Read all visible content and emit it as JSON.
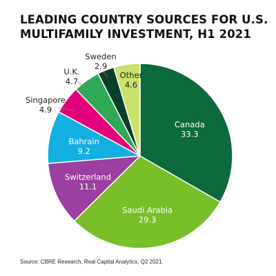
{
  "title_lines": [
    "LEADING COUNTRY SOURCES FOR U.S.",
    "MULTIFAMILY INVESTMENT, H1 2021"
  ],
  "source": "Source: CBRE Research, Real Capital Analytics, Q2 2021.",
  "chart_data": {
    "type": "pie",
    "title": "LEADING COUNTRY SOURCES FOR U.S. MULTIFAMILY INVESTMENT, H1 2021",
    "start": "12 o'clock",
    "direction": "clockwise",
    "slices": [
      {
        "label": "Canada",
        "value": 33.3,
        "value_label": "33.3",
        "color": "#0d6a3c",
        "text_color": "#ffffff"
      },
      {
        "label": "Saudi Arabia",
        "value": 29.3,
        "value_label": "29.3",
        "color": "#78bf2a",
        "text_color": "#ffffff"
      },
      {
        "label": "Switzerland",
        "value": 11.1,
        "value_label": "11.1",
        "color": "#9b3fa0",
        "text_color": "#ffffff"
      },
      {
        "label": "Bahrain",
        "value": 9.2,
        "value_label": "9.2",
        "color": "#12afe3",
        "text_color": "#ffffff"
      },
      {
        "label": "Singapore",
        "value": 4.9,
        "value_label": "4.9",
        "color": "#e3007a",
        "text_color": "#222222"
      },
      {
        "label": "U.K.",
        "value": 4.7,
        "value_label": "4.7",
        "color": "#2eaa57",
        "text_color": "#222222"
      },
      {
        "label": "Sweden",
        "value": 2.9,
        "value_label": "2.9",
        "color": "#0a3f28",
        "text_color": "#222222"
      },
      {
        "label": "Other",
        "value": 4.6,
        "value_label": "4.6",
        "color": "#c9e26b",
        "text_color": "#222222"
      }
    ]
  }
}
